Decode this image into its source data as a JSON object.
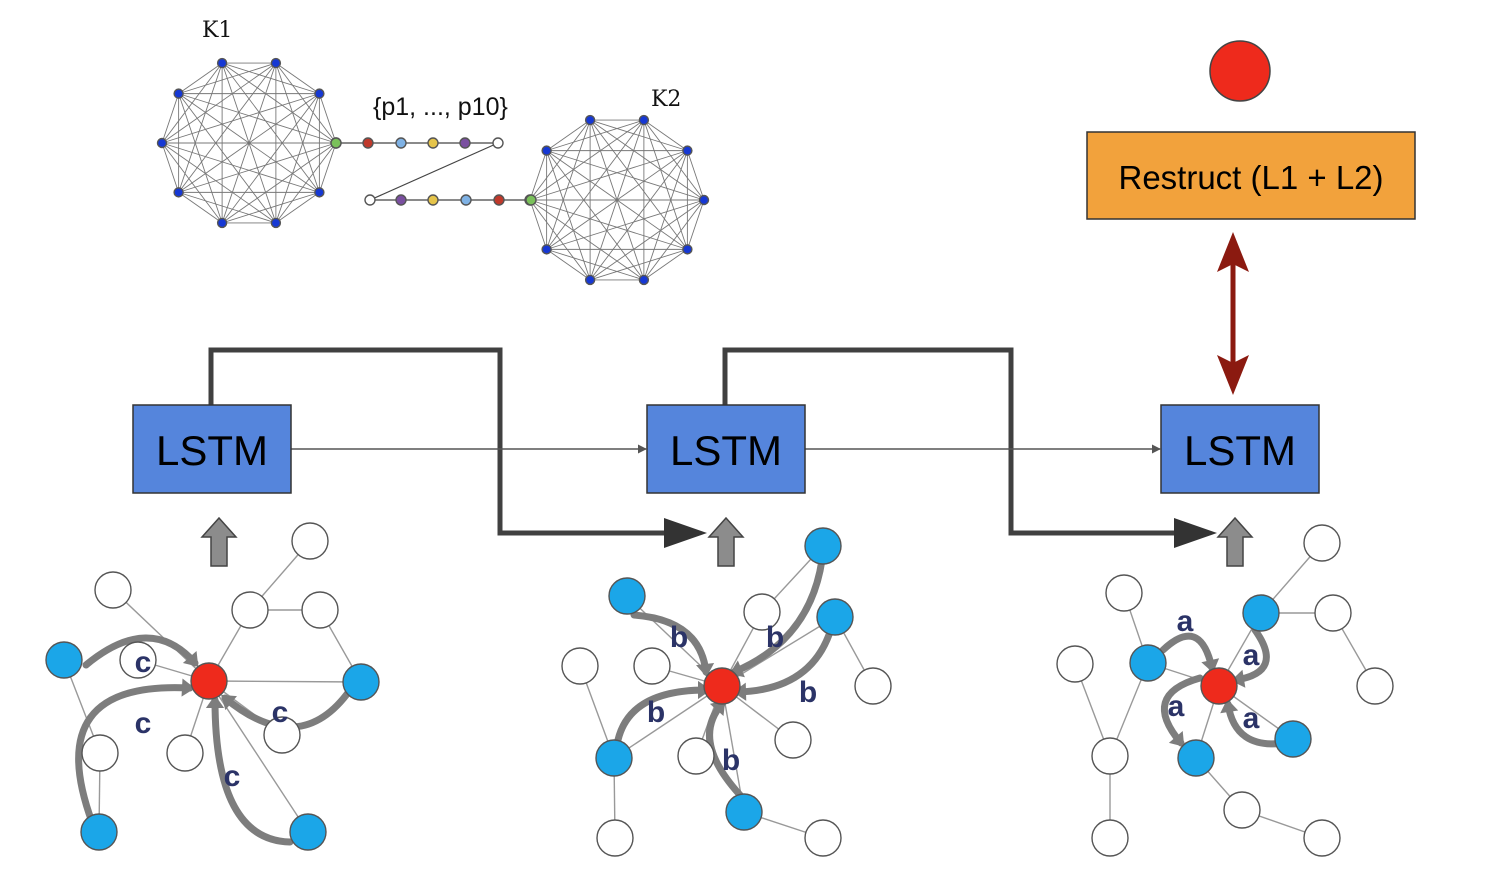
{
  "graph_labels": {
    "k1": "K1",
    "k2": "K2",
    "path": "{p1, ..., p10}"
  },
  "lstm_label": "LSTM",
  "restruct_label": "Restruct (L1 + L2)",
  "edge_labels": {
    "c": "c",
    "b": "b",
    "a": "a"
  },
  "colors": {
    "lstm_fill": "#5585dc",
    "restruct_fill": "#f2a23c",
    "red_node": "#ee2a1c",
    "blue_node": "#1ba6e8",
    "k_node": "#1638d4",
    "skip_arrow": "#404040",
    "double_arrow": "#8b1a10",
    "label_color": "#2b3367"
  }
}
